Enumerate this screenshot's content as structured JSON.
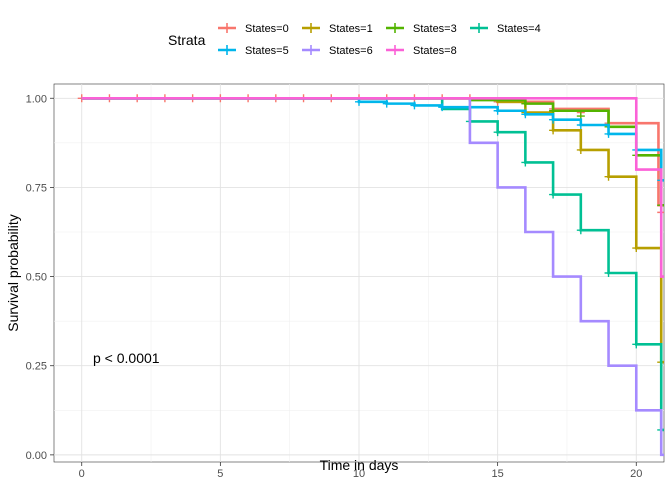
{
  "chart_data": {
    "type": "line",
    "step": true,
    "xlabel": "Time in days",
    "ylabel": "Survival probability",
    "xlim": [
      -1,
      21
    ],
    "ylim": [
      -0.02,
      1.04
    ],
    "xticks": [
      0,
      5,
      10,
      15,
      20
    ],
    "yticks": [
      0.0,
      0.25,
      0.5,
      0.75,
      1.0
    ],
    "ytick_labels": [
      "0.00",
      "0.25",
      "0.50",
      "0.75",
      "1.00"
    ],
    "xtick_labels": [
      "0",
      "5",
      "10",
      "15",
      "20"
    ],
    "grid": true,
    "legend": {
      "title": "Strata",
      "position": "top"
    },
    "annotation": "p < 0.0001",
    "series": [
      {
        "name": "States=0",
        "color": "#F8766D",
        "steps": [
          [
            0,
            1.0
          ],
          [
            15,
            0.99
          ],
          [
            17,
            0.97
          ],
          [
            19,
            0.93
          ],
          [
            20.8,
            0.7
          ]
        ],
        "censor": [
          [
            0,
            1.0
          ],
          [
            1,
            1.0
          ],
          [
            2,
            1.0
          ],
          [
            3,
            1.0
          ],
          [
            4,
            1.0
          ],
          [
            5,
            1.0
          ],
          [
            6,
            1.0
          ],
          [
            7,
            1.0
          ],
          [
            8,
            1.0
          ],
          [
            9,
            1.0
          ],
          [
            10,
            1.0
          ],
          [
            11,
            1.0
          ],
          [
            12,
            1.0
          ],
          [
            13,
            1.0
          ],
          [
            14,
            1.0
          ],
          [
            15,
            0.99
          ],
          [
            16,
            0.985
          ],
          [
            17,
            0.97
          ],
          [
            18,
            0.96
          ],
          [
            19,
            0.93
          ],
          [
            20,
            0.93
          ],
          [
            20.9,
            0.68
          ]
        ]
      },
      {
        "name": "States=1",
        "color": "#B79F00",
        "steps": [
          [
            0,
            1.0
          ],
          [
            15,
            0.99
          ],
          [
            16,
            0.96
          ],
          [
            17,
            0.91
          ],
          [
            18,
            0.855
          ],
          [
            19,
            0.78
          ],
          [
            20,
            0.58
          ],
          [
            20.9,
            0.26
          ]
        ],
        "censor": [
          [
            16,
            0.96
          ],
          [
            17,
            0.91
          ],
          [
            18,
            0.855
          ],
          [
            19,
            0.78
          ],
          [
            20,
            0.58
          ],
          [
            20.9,
            0.26
          ]
        ]
      },
      {
        "name": "States=3",
        "color": "#53B400",
        "steps": [
          [
            0,
            1.0
          ],
          [
            14,
            0.995
          ],
          [
            16,
            0.985
          ],
          [
            17,
            0.965
          ],
          [
            19,
            0.92
          ],
          [
            20,
            0.84
          ],
          [
            20.9,
            0.7
          ]
        ],
        "censor": [
          [
            16,
            0.985
          ],
          [
            17,
            0.965
          ],
          [
            18,
            0.95
          ],
          [
            19,
            0.92
          ],
          [
            20,
            0.84
          ],
          [
            20.9,
            0.7
          ]
        ]
      },
      {
        "name": "States=4",
        "color": "#00C094",
        "steps": [
          [
            0,
            1.0
          ],
          [
            13,
            0.97
          ],
          [
            14,
            0.935
          ],
          [
            15,
            0.905
          ],
          [
            16,
            0.82
          ],
          [
            17,
            0.73
          ],
          [
            18,
            0.63
          ],
          [
            19,
            0.51
          ],
          [
            20,
            0.31
          ],
          [
            20.9,
            0.07
          ]
        ],
        "censor": [
          [
            14,
            0.935
          ],
          [
            15,
            0.905
          ],
          [
            16,
            0.82
          ],
          [
            17,
            0.73
          ],
          [
            18,
            0.63
          ],
          [
            19,
            0.51
          ],
          [
            20,
            0.31
          ],
          [
            20.9,
            0.07
          ]
        ]
      },
      {
        "name": "States=5",
        "color": "#00B6EB",
        "steps": [
          [
            0,
            1.0
          ],
          [
            10,
            0.99
          ],
          [
            11,
            0.985
          ],
          [
            12,
            0.98
          ],
          [
            13,
            0.975
          ],
          [
            15,
            0.965
          ],
          [
            16,
            0.955
          ],
          [
            17,
            0.94
          ],
          [
            18,
            0.925
          ],
          [
            19,
            0.9
          ],
          [
            20,
            0.855
          ],
          [
            20.9,
            0.77
          ]
        ],
        "censor": [
          [
            10,
            0.99
          ],
          [
            11,
            0.985
          ],
          [
            12,
            0.98
          ],
          [
            13,
            0.975
          ],
          [
            15,
            0.965
          ],
          [
            16,
            0.955
          ],
          [
            17,
            0.94
          ],
          [
            18,
            0.925
          ],
          [
            19,
            0.9
          ],
          [
            20,
            0.855
          ],
          [
            20.9,
            0.77
          ]
        ]
      },
      {
        "name": "States=6",
        "color": "#A58AFF",
        "steps": [
          [
            0,
            1.0
          ],
          [
            14,
            0.875
          ],
          [
            15,
            0.75
          ],
          [
            16,
            0.625
          ],
          [
            17,
            0.5
          ],
          [
            18,
            0.375
          ],
          [
            19,
            0.25
          ],
          [
            20,
            0.125
          ],
          [
            20.9,
            0.0
          ]
        ],
        "censor": []
      },
      {
        "name": "States=8",
        "color": "#FB61D7",
        "steps": [
          [
            0,
            1.0
          ],
          [
            20,
            0.8
          ],
          [
            20.9,
            0.5
          ]
        ],
        "censor": []
      }
    ]
  }
}
